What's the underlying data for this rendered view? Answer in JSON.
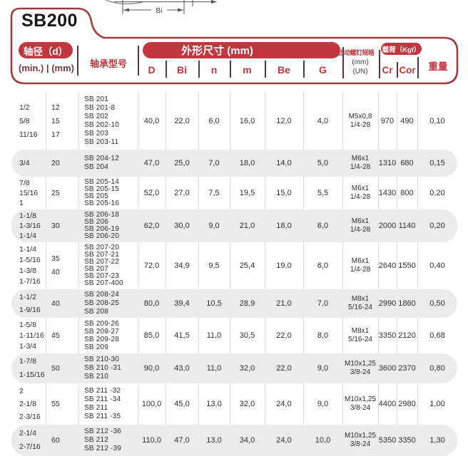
{
  "title": "SB200",
  "diagram": {
    "label": "Bi"
  },
  "colors": {
    "red": "#c2363f",
    "frame": "#a13b42",
    "dark_red": "#73383b",
    "row_alt": "#ebebeb",
    "divider": "#dcdcdc",
    "header_bar": "#5b3538",
    "body_text": "#2f2f2f"
  },
  "header": {
    "shaft_group": "轴径（d）",
    "shaft_sub": "(min.) | (mm)",
    "model_col": "轴承型号",
    "dims_group": "外形尺寸 (mm)",
    "dim_cols": [
      "D",
      "Bi",
      "n",
      "m",
      "Be",
      "G"
    ],
    "screw_title": "止动螺钉规格",
    "screw_sub1": "(mm)",
    "screw_sub2": "(UN)",
    "load_group": "载荷（Kgf）",
    "load_cols": [
      "Cr",
      "Cor"
    ],
    "weight_col": "重量"
  },
  "rows": [
    {
      "min": [
        "1/2",
        "5/8",
        "11/16"
      ],
      "mm": [
        "12",
        "15",
        "17"
      ],
      "models": [
        "SB 201",
        "SB 201-8",
        "SB 202",
        "SB 202-10",
        "SB 203",
        "SB 203-11"
      ],
      "D": "40,0",
      "Bi": "22,0",
      "n": "6,0",
      "m": "16,0",
      "Be": "12,0",
      "G": "4,0",
      "screw": [
        "M5x0,8",
        "1/4-28"
      ],
      "Cr": "970",
      "Cor": "490",
      "weight": "0,10",
      "shaded": false
    },
    {
      "min": [
        "3/4"
      ],
      "mm": [
        "20"
      ],
      "models": [
        "SB 204-12",
        "SB 204"
      ],
      "D": "47,0",
      "Bi": "25,0",
      "n": "7,0",
      "m": "18,0",
      "Be": "14,0",
      "G": "5,0",
      "screw": [
        "M6x1",
        "1/4-28"
      ],
      "Cr": "1310",
      "Cor": "680",
      "weight": "0,15",
      "shaded": true
    },
    {
      "min": [
        "7/8",
        "15/16",
        "1"
      ],
      "mm": [
        "25"
      ],
      "models": [
        "SB 205-14",
        "SB 205-15",
        "SB 205",
        "SB 205-16"
      ],
      "D": "52,0",
      "Bi": "27,0",
      "n": "7,5",
      "m": "19,5",
      "Be": "15,0",
      "G": "5,5",
      "screw": [
        "M6x1",
        "1/4-28"
      ],
      "Cr": "1430",
      "Cor": "800",
      "weight": "0,20",
      "shaded": false
    },
    {
      "min": [
        "1-1/8",
        "1-3/16",
        "1-1/4"
      ],
      "mm": [
        "30"
      ],
      "models": [
        "SB 206-18",
        "SB 206",
        "SB 206-19",
        "SB 206-20"
      ],
      "D": "62,0",
      "Bi": "30,0",
      "n": "9,0",
      "m": "21,0",
      "Be": "18,0",
      "G": "6,0",
      "screw": [
        "M6x1",
        "1/4-28"
      ],
      "Cr": "2000",
      "Cor": "1140",
      "weight": "0,20",
      "shaded": true
    },
    {
      "min": [
        "1-1/4",
        "1-5/16",
        "1-3/8",
        "1-7/16"
      ],
      "mm": [
        "35",
        "40"
      ],
      "models": [
        "SB 207-20",
        "SB 207-21",
        "SB 207-22",
        "SB 207",
        "SB 207-23",
        "SB 207-400"
      ],
      "D": "72,0",
      "Bi": "34,9",
      "n": "9,5",
      "m": "25,4",
      "Be": "19,0",
      "G": "6,0",
      "screw": [
        "M6x1",
        "1/4-28"
      ],
      "Cr": "2640",
      "Cor": "1550",
      "weight": "0,40",
      "shaded": false
    },
    {
      "min": [
        "1-1/2",
        "1-9/16"
      ],
      "mm": [
        "40"
      ],
      "models": [
        "SB 208-24",
        "SB 208-25",
        "SB 208"
      ],
      "D": "80,0",
      "Bi": "39,4",
      "n": "10,5",
      "m": "28,9",
      "Be": "21,0",
      "G": "7,0",
      "screw": [
        "M8x1",
        "5/16-24"
      ],
      "Cr": "2990",
      "Cor": "1860",
      "weight": "0,50",
      "shaded": true
    },
    {
      "min": [
        "1-5/8",
        "1-11/16",
        "1-3/4"
      ],
      "mm": [
        "45"
      ],
      "models": [
        "SB 209-26",
        "SB 209-27",
        "SB 209-28",
        "SB 209"
      ],
      "D": "85,0",
      "Bi": "41,5",
      "n": "11,0",
      "m": "30,5",
      "Be": "22,0",
      "G": "8,0",
      "screw": [
        "M8x1",
        "5/16-24"
      ],
      "Cr": "3350",
      "Cor": "2120",
      "weight": "0,68",
      "shaded": false
    },
    {
      "min": [
        "1-7/8",
        "1-15/16"
      ],
      "mm": [
        "50"
      ],
      "models": [
        "SB 210-30",
        "SB 210 -31",
        "SB 210"
      ],
      "D": "90,0",
      "Bi": "43,0",
      "n": "11,0",
      "m": "32,0",
      "Be": "22,0",
      "G": "9,0",
      "screw": [
        "M10x1,25",
        "3/8-24"
      ],
      "Cr": "3600",
      "Cor": "2370",
      "weight": "0,80",
      "shaded": true
    },
    {
      "min": [
        "2",
        "2-1/8",
        "2-3/16"
      ],
      "mm": [
        "55"
      ],
      "models": [
        "SB 211 -32",
        "SB 211 -34",
        "SB 211",
        "SB 211 -35"
      ],
      "D": "100,0",
      "Bi": "45,0",
      "n": "13,0",
      "m": "32,0",
      "Be": "24,0",
      "G": "9,0",
      "screw": [
        "M10x1,25",
        "3/8-24"
      ],
      "Cr": "4400",
      "Cor": "2980",
      "weight": "1,00",
      "shaded": false
    },
    {
      "min": [
        "2-1/4",
        "2-7/16"
      ],
      "mm": [
        "60"
      ],
      "models": [
        "SB 212 -36",
        "SB 212",
        "SB 212  -39"
      ],
      "D": "110,0",
      "Bi": "47,0",
      "n": "13,0",
      "m": "34,0",
      "Be": "24,0",
      "G": "10,0",
      "screw": [
        "M10x1,25",
        "3/8-24"
      ],
      "Cr": "5350",
      "Cor": "3350",
      "weight": "1,30",
      "shaded": true
    }
  ]
}
